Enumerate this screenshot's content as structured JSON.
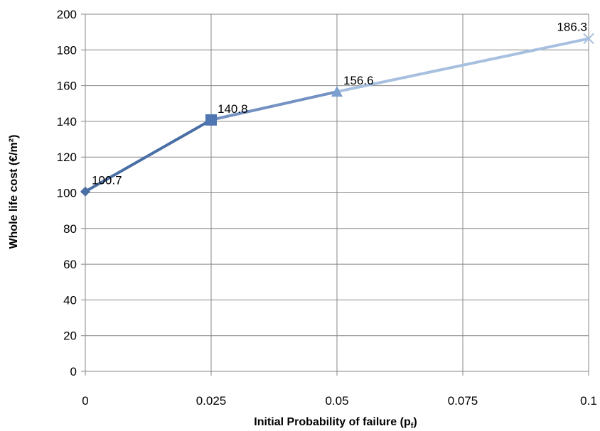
{
  "chart_data": {
    "type": "line",
    "title": "",
    "xlabel": "Initial Probability of failure (p",
    "xlabel_subscript": "f",
    "xlabel_suffix": ")",
    "ylabel": "Whole life cost (€/m²)",
    "x": [
      0,
      0.025,
      0.05,
      0.075,
      0.1
    ],
    "x_tick_labels": [
      "0",
      "0.025",
      "0.05",
      "0.075",
      "0.1"
    ],
    "xlim": [
      0,
      0.1
    ],
    "ylim": [
      0,
      200
    ],
    "y_ticks": [
      0,
      20,
      40,
      60,
      80,
      100,
      120,
      140,
      160,
      180,
      200
    ],
    "grid": true,
    "points": [
      {
        "x": 0,
        "y": 100.7,
        "label": "100.7",
        "marker": "diamond",
        "color": "#4a6fa5"
      },
      {
        "x": 0.025,
        "y": 140.8,
        "label": "140.8",
        "marker": "square",
        "color": "#4f76b0"
      },
      {
        "x": 0.05,
        "y": 156.6,
        "label": "156.6",
        "marker": "triangle",
        "color": "#7b9fcf"
      },
      {
        "x": 0.1,
        "y": 186.3,
        "label": "186.3",
        "marker": "x",
        "color": "#a8c0e0"
      }
    ],
    "segment_colors": [
      "#4a6fa5",
      "#7391c2",
      "#a8c0e0"
    ]
  }
}
